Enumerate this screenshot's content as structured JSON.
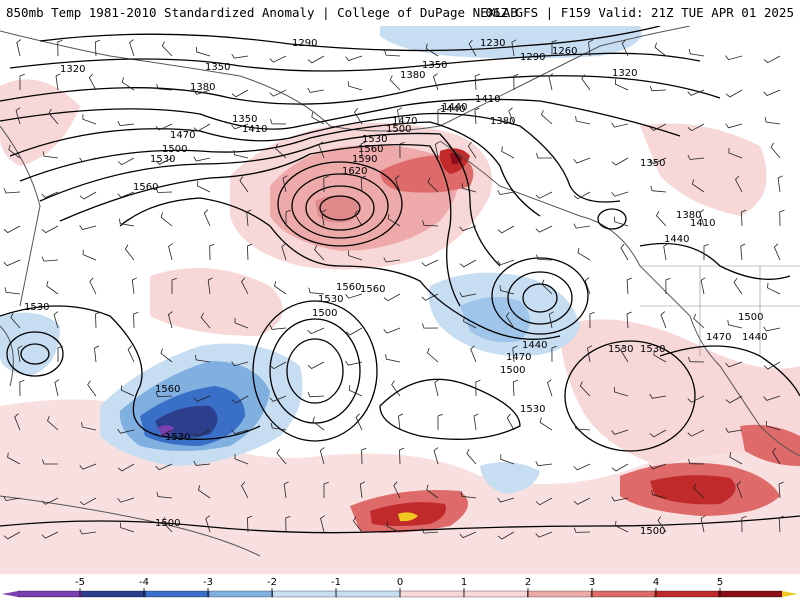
{
  "header": {
    "title_left": "850mb Temp 1981-2010 Standardized Anomaly | College of DuPage NEXLAB",
    "title_right": "06Z GFS | F159 Valid: 21Z TUE APR 01 2025"
  },
  "colors": {
    "neg5": "#7a3fb0",
    "neg4": "#2b3f8c",
    "neg3": "#3a6fc8",
    "neg2": "#7fb0e0",
    "neg1": "#c7ddf2",
    "pos1": "#f7d7d7",
    "pos2": "#eeaaaa",
    "pos3": "#de6a6a",
    "pos4": "#c02a2a",
    "pos5": "#8c0f1a",
    "pos6": "#f0c820"
  },
  "contour_labels": [
    "1290",
    "1230",
    "1260",
    "1290",
    "1320",
    "1350",
    "1380",
    "1320",
    "1350",
    "1380",
    "1410",
    "1440",
    "1470",
    "1500",
    "1530",
    "1560",
    "1590",
    "1620",
    "1560",
    "1530",
    "1500",
    "1470",
    "1440",
    "1410",
    "1380",
    "1350",
    "1440",
    "1470",
    "1500",
    "1530",
    "1560",
    "1530",
    "1500",
    "1470",
    "1440",
    "1410",
    "1380",
    "1440",
    "1350",
    "1530",
    "1560",
    "1500",
    "1530",
    "1560",
    "1530",
    "1500",
    "1500",
    "1530"
  ],
  "colorbar": {
    "ticks": [
      "-5",
      "-4",
      "-3",
      "-2",
      "-1",
      "0",
      "1",
      "2",
      "3",
      "4",
      "5"
    ]
  }
}
